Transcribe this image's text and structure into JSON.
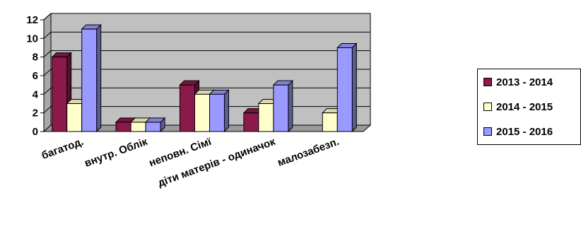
{
  "chart_data": {
    "type": "bar",
    "style": "3d-clustered-column",
    "categories": [
      "багатод.",
      "внутр. Облік",
      "неповн. Сімї",
      "діти матерів - одиначок",
      "малозабезп."
    ],
    "series": [
      {
        "name": "2013 - 2014",
        "color": "#8b1a4a",
        "values": [
          8,
          1,
          5,
          2,
          0
        ]
      },
      {
        "name": "2014 - 2015",
        "color": "#ffffcc",
        "values": [
          3,
          1,
          4,
          3,
          2
        ]
      },
      {
        "name": "2015 - 2016",
        "color": "#9999ff",
        "values": [
          11,
          1,
          4,
          5,
          9
        ]
      }
    ],
    "yticks": [
      "0",
      "2",
      "4",
      "6",
      "8",
      "10",
      "12"
    ],
    "ylim": [
      0,
      12
    ],
    "grid": true,
    "wall_color": "#c0c0c0",
    "legend_position": "right"
  }
}
